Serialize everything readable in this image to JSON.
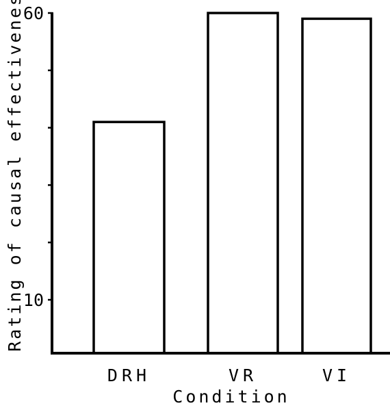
{
  "chart_data": {
    "type": "bar",
    "categories": [
      "DRH",
      "VR",
      "VI"
    ],
    "values": [
      41,
      60,
      59
    ],
    "title": "",
    "xlabel": "Condition",
    "ylabel": "Rating of causal effectiveness",
    "yticks": [
      10,
      60
    ],
    "ytick_labels": [
      "10",
      "60"
    ],
    "ylim": [
      0,
      60
    ],
    "grid": false,
    "legend": "none",
    "colors": {
      "bar_fill": "#ffffff",
      "bar_stroke": "#000000",
      "axis": "#000000"
    }
  }
}
